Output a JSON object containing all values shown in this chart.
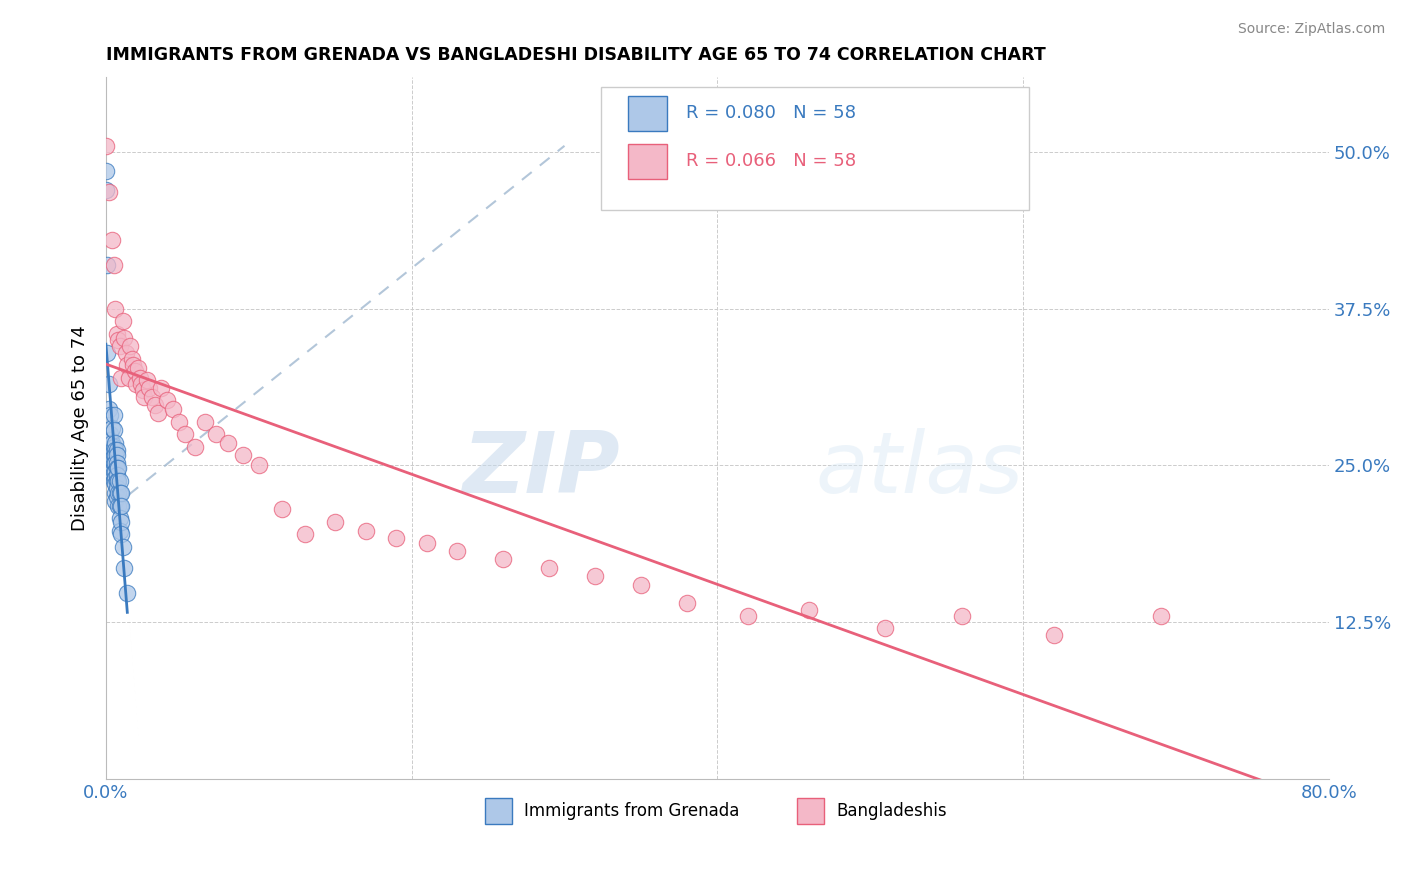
{
  "title": "IMMIGRANTS FROM GRENADA VS BANGLADESHI DISABILITY AGE 65 TO 74 CORRELATION CHART",
  "source": "Source: ZipAtlas.com",
  "ylabel": "Disability Age 65 to 74",
  "legend_label1": "Immigrants from Grenada",
  "legend_label2": "Bangladeshis",
  "R1": 0.08,
  "N1": 58,
  "R2": 0.066,
  "N2": 58,
  "xmin": 0.0,
  "xmax": 0.8,
  "ymin": 0.0,
  "ymax": 0.56,
  "color_blue": "#aec8e8",
  "color_pink": "#f4b8c8",
  "color_blue_line": "#3a7abf",
  "color_pink_line": "#e8607a",
  "background": "#ffffff",
  "watermark_zip": "ZIP",
  "watermark_atlas": "atlas",
  "grenada_x": [
    0.0,
    0.0,
    0.001,
    0.001,
    0.002,
    0.002,
    0.002,
    0.002,
    0.003,
    0.003,
    0.003,
    0.003,
    0.003,
    0.004,
    0.004,
    0.004,
    0.004,
    0.004,
    0.005,
    0.005,
    0.005,
    0.005,
    0.005,
    0.005,
    0.005,
    0.006,
    0.006,
    0.006,
    0.006,
    0.006,
    0.006,
    0.006,
    0.006,
    0.006,
    0.007,
    0.007,
    0.007,
    0.007,
    0.007,
    0.007,
    0.007,
    0.007,
    0.008,
    0.008,
    0.008,
    0.008,
    0.009,
    0.009,
    0.009,
    0.009,
    0.009,
    0.01,
    0.01,
    0.01,
    0.01,
    0.011,
    0.012,
    0.014
  ],
  "grenada_y": [
    0.485,
    0.47,
    0.41,
    0.34,
    0.315,
    0.295,
    0.27,
    0.255,
    0.29,
    0.275,
    0.27,
    0.26,
    0.25,
    0.28,
    0.268,
    0.26,
    0.255,
    0.245,
    0.29,
    0.278,
    0.265,
    0.258,
    0.252,
    0.245,
    0.238,
    0.268,
    0.262,
    0.258,
    0.252,
    0.245,
    0.24,
    0.235,
    0.228,
    0.222,
    0.262,
    0.258,
    0.252,
    0.248,
    0.242,
    0.238,
    0.232,
    0.225,
    0.248,
    0.238,
    0.228,
    0.218,
    0.238,
    0.228,
    0.218,
    0.208,
    0.198,
    0.228,
    0.218,
    0.205,
    0.195,
    0.185,
    0.168,
    0.148
  ],
  "bangladeshi_x": [
    0.0,
    0.002,
    0.004,
    0.005,
    0.006,
    0.007,
    0.008,
    0.009,
    0.01,
    0.011,
    0.012,
    0.013,
    0.014,
    0.015,
    0.016,
    0.017,
    0.018,
    0.019,
    0.02,
    0.021,
    0.022,
    0.023,
    0.024,
    0.025,
    0.027,
    0.028,
    0.03,
    0.032,
    0.034,
    0.036,
    0.04,
    0.044,
    0.048,
    0.052,
    0.058,
    0.065,
    0.072,
    0.08,
    0.09,
    0.1,
    0.115,
    0.13,
    0.15,
    0.17,
    0.19,
    0.21,
    0.23,
    0.26,
    0.29,
    0.32,
    0.35,
    0.38,
    0.42,
    0.46,
    0.51,
    0.56,
    0.62,
    0.69
  ],
  "bangladeshi_y": [
    0.505,
    0.468,
    0.43,
    0.41,
    0.375,
    0.355,
    0.35,
    0.345,
    0.32,
    0.365,
    0.352,
    0.34,
    0.33,
    0.32,
    0.345,
    0.335,
    0.33,
    0.325,
    0.315,
    0.328,
    0.32,
    0.315,
    0.31,
    0.305,
    0.318,
    0.312,
    0.305,
    0.298,
    0.292,
    0.312,
    0.302,
    0.295,
    0.285,
    0.275,
    0.265,
    0.285,
    0.275,
    0.268,
    0.258,
    0.25,
    0.215,
    0.195,
    0.205,
    0.198,
    0.192,
    0.188,
    0.182,
    0.175,
    0.168,
    0.162,
    0.155,
    0.14,
    0.13,
    0.135,
    0.12,
    0.13,
    0.115,
    0.13
  ]
}
